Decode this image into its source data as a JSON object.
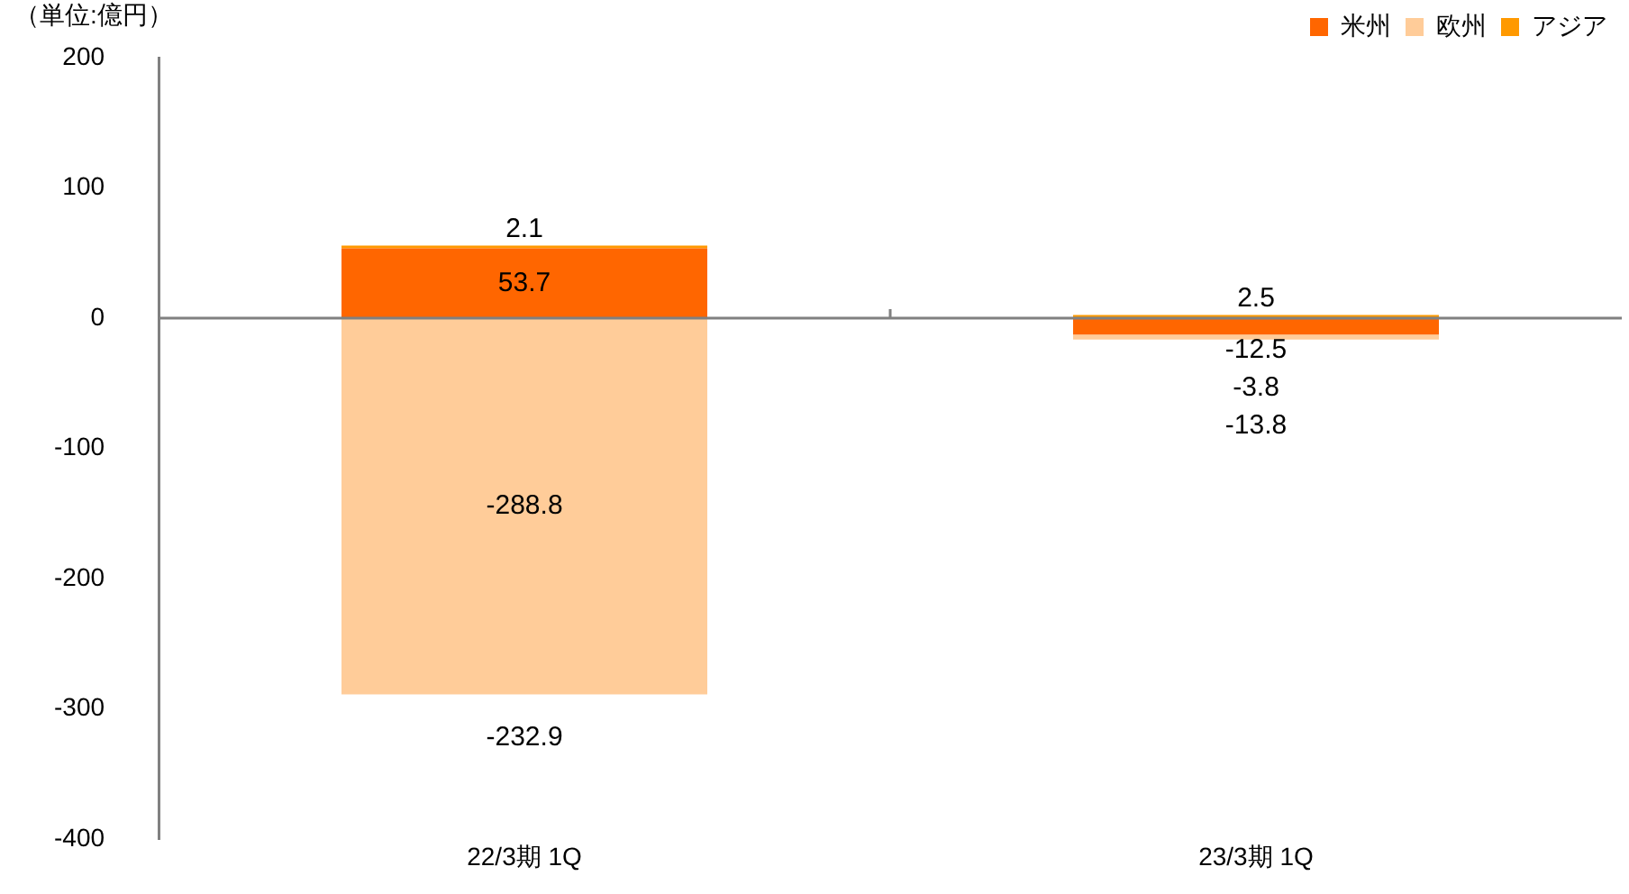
{
  "chart_data": {
    "type": "bar",
    "stacked": true,
    "ylabel": "（単位:億円）",
    "categories": [
      "22/3期 1Q",
      "23/3期 1Q"
    ],
    "series": [
      {
        "name": "米州",
        "color": "#ff6600",
        "values": [
          53.7,
          -12.5
        ]
      },
      {
        "name": "欧州",
        "color": "#ffcc99",
        "values": [
          -288.8,
          -3.8
        ]
      },
      {
        "name": "アジア",
        "color": "#ff9900",
        "values": [
          2.1,
          2.5
        ]
      }
    ],
    "totals": [
      "-232.9",
      "-13.8"
    ],
    "data_labels": true,
    "ylim": [
      -400,
      200
    ],
    "yticks": [
      -400,
      -300,
      -200,
      -100,
      0,
      100,
      200
    ],
    "ref_lines": [
      {
        "axis": "y",
        "value": 0,
        "color": "#808080"
      }
    ],
    "grid": false,
    "legend": "top right"
  }
}
